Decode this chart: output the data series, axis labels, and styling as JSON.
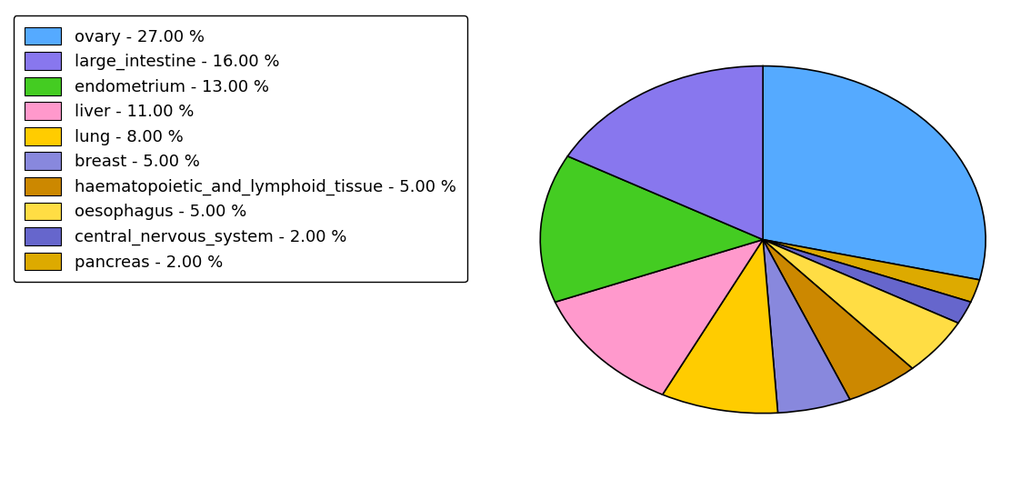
{
  "labels": [
    "ovary",
    "pancreas",
    "central_nervous_system",
    "oesophagus",
    "haematopoietic_and_lymphoid_tissue",
    "breast",
    "lung",
    "liver",
    "endometrium",
    "large_intestine"
  ],
  "values": [
    27,
    2,
    2,
    5,
    5,
    5,
    8,
    11,
    13,
    16
  ],
  "colors": [
    "#55aaff",
    "#ddaa00",
    "#6666cc",
    "#ffdd44",
    "#cc8800",
    "#8888dd",
    "#ffcc00",
    "#ff99cc",
    "#44cc22",
    "#8877ee"
  ],
  "legend_order_labels": [
    "ovary - 27.00 %",
    "large_intestine - 16.00 %",
    "endometrium - 13.00 %",
    "liver - 11.00 %",
    "lung - 8.00 %",
    "breast - 5.00 %",
    "haematopoietic_and_lymphoid_tissue - 5.00 %",
    "oesophagus - 5.00 %",
    "central_nervous_system - 2.00 %",
    "pancreas - 2.00 %"
  ],
  "legend_colors": [
    "#55aaff",
    "#8877ee",
    "#44cc22",
    "#ff99cc",
    "#ffcc00",
    "#8888dd",
    "#cc8800",
    "#ffdd44",
    "#6666cc",
    "#ddaa00"
  ],
  "background_color": "#ffffff",
  "font_size": 13
}
